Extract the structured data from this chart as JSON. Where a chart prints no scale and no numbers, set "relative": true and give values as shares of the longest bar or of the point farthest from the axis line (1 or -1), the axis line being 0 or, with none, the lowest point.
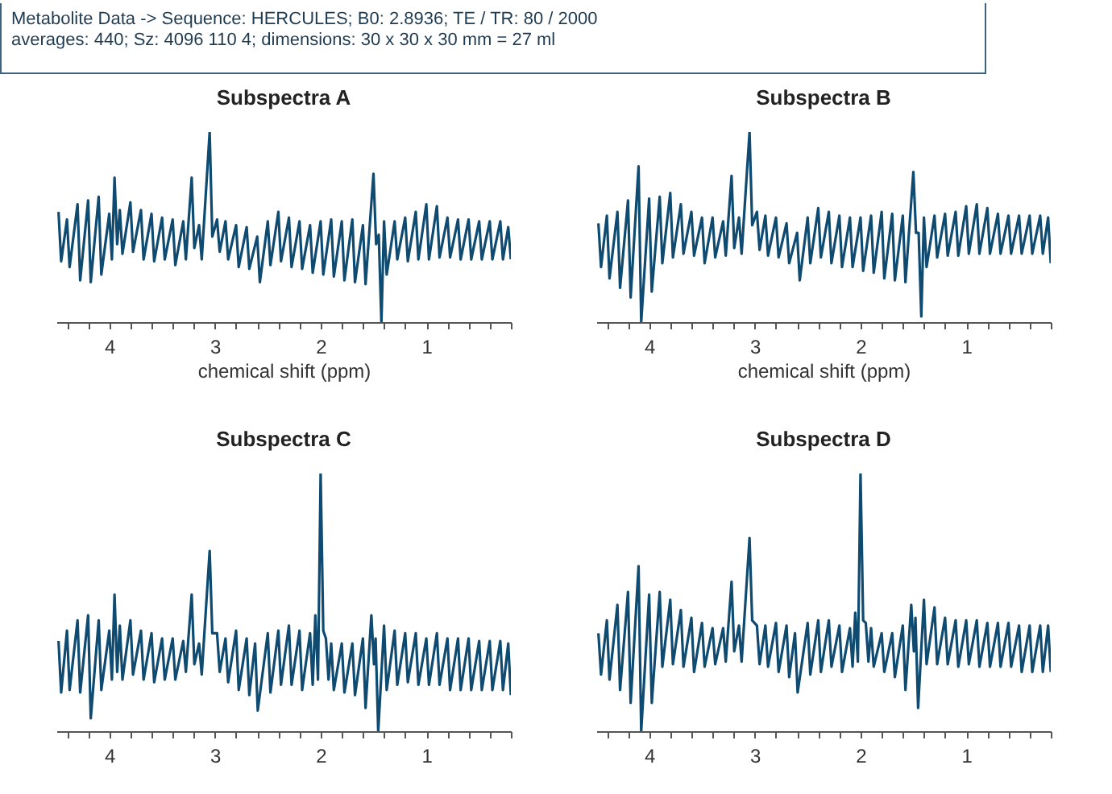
{
  "chart_data": [
    {
      "type": "other",
      "annotations": [
        "Metabolite Data -> Sequence: HERCULES; B0: 2.8936; TE / TR: 80 / 2000",
        "averages: 440; Sz: 4096   110     4; dimensions: 30 x 30 x 30 mm = 27 ml"
      ]
    },
    {
      "type": "line",
      "title": "Subspectra A",
      "xlabel": "chemical shift (ppm)",
      "relative": true,
      "xlim": [
        4.5,
        0.2
      ],
      "xticks": [
        {
          "value": 4.4,
          "label": null
        },
        {
          "value": 4.2,
          "label": null
        },
        4,
        {
          "value": 3.8,
          "label": null
        },
        {
          "value": 3.6,
          "label": null
        },
        {
          "value": 3.4,
          "label": null
        },
        {
          "value": 3.2,
          "label": null
        },
        3,
        {
          "value": 2.8,
          "label": null
        },
        {
          "value": 2.6,
          "label": null
        },
        {
          "value": 2.4,
          "label": null
        },
        {
          "value": 2.2,
          "label": null
        },
        2,
        {
          "value": 1.8,
          "label": null
        },
        {
          "value": 1.6,
          "label": null
        },
        {
          "value": 1.4,
          "label": null
        },
        {
          "value": 1.2,
          "label": null
        },
        1,
        {
          "value": 0.8,
          "label": null
        },
        {
          "value": 0.6,
          "label": null
        },
        {
          "value": 0.4,
          "label": null
        },
        {
          "value": 0.2,
          "label": null
        }
      ],
      "series": [
        {
          "color": "#0f4a70",
          "x": [
            4.48,
            4.455,
            4.4,
            4.375,
            4.3,
            4.275,
            4.2,
            4.175,
            4.1,
            4.075,
            4.0,
            3.975,
            3.95,
            3.925,
            3.9,
            3.875,
            3.8,
            3.775,
            3.7,
            3.675,
            3.6,
            3.575,
            3.5,
            3.475,
            3.4,
            3.375,
            3.3,
            3.275,
            3.22,
            3.195,
            3.15,
            3.125,
            3.05,
            3.025,
            2.98,
            2.955,
            2.9,
            2.875,
            2.8,
            2.775,
            2.7,
            2.675,
            2.6,
            2.575,
            2.5,
            2.475,
            2.4,
            2.375,
            2.3,
            2.275,
            2.2,
            2.175,
            2.1,
            2.075,
            2.0,
            1.975,
            1.9,
            1.875,
            1.8,
            1.775,
            1.7,
            1.675,
            1.6,
            1.575,
            1.5,
            1.475,
            1.45,
            1.425,
            1.4,
            1.375,
            1.3,
            1.275,
            1.2,
            1.175,
            1.1,
            1.075,
            1.0,
            0.975,
            0.9,
            0.875,
            0.8,
            0.775,
            0.7,
            0.675,
            0.6,
            0.575,
            0.5,
            0.475,
            0.4,
            0.375,
            0.3,
            0.275,
            0.225,
            0.2
          ],
          "values": [
            0.58,
            0.32,
            0.54,
            0.29,
            0.62,
            0.22,
            0.64,
            0.21,
            0.66,
            0.25,
            0.57,
            0.33,
            0.76,
            0.41,
            0.59,
            0.36,
            0.63,
            0.37,
            0.59,
            0.33,
            0.57,
            0.32,
            0.55,
            0.33,
            0.54,
            0.3,
            0.53,
            0.33,
            0.76,
            0.39,
            0.51,
            0.33,
            1,
            0.45,
            0.54,
            0.37,
            0.53,
            0.33,
            0.51,
            0.29,
            0.5,
            0.28,
            0.45,
            0.21,
            0.53,
            0.3,
            0.58,
            0.32,
            0.55,
            0.29,
            0.53,
            0.28,
            0.51,
            0.26,
            0.53,
            0.25,
            0.54,
            0.24,
            0.53,
            0.22,
            0.54,
            0.21,
            0.51,
            0.2,
            0.78,
            0.41,
            0.46,
            0,
            0.53,
            0.25,
            0.53,
            0.33,
            0.55,
            0.32,
            0.58,
            0.33,
            0.62,
            0.33,
            0.61,
            0.34,
            0.55,
            0.34,
            0.54,
            0.33,
            0.54,
            0.33,
            0.53,
            0.33,
            0.53,
            0.33,
            0.53,
            0.33,
            0.5,
            0.33
          ]
        }
      ]
    },
    {
      "type": "line",
      "title": "Subspectra B",
      "xlabel": "chemical shift (ppm)",
      "relative": true,
      "xlim": [
        4.5,
        0.2
      ],
      "xticks": [
        {
          "value": 4.4,
          "label": null
        },
        {
          "value": 4.2,
          "label": null
        },
        4,
        {
          "value": 3.8,
          "label": null
        },
        {
          "value": 3.6,
          "label": null
        },
        {
          "value": 3.4,
          "label": null
        },
        {
          "value": 3.2,
          "label": null
        },
        3,
        {
          "value": 2.8,
          "label": null
        },
        {
          "value": 2.6,
          "label": null
        },
        {
          "value": 2.4,
          "label": null
        },
        {
          "value": 2.2,
          "label": null
        },
        2,
        {
          "value": 1.8,
          "label": null
        },
        {
          "value": 1.6,
          "label": null
        },
        {
          "value": 1.4,
          "label": null
        },
        {
          "value": 1.2,
          "label": null
        },
        1,
        {
          "value": 0.8,
          "label": null
        },
        {
          "value": 0.6,
          "label": null
        },
        {
          "value": 0.4,
          "label": null
        },
        {
          "value": 0.2,
          "label": null
        }
      ],
      "series": [
        {
          "color": "#0f4a70",
          "x": [
            4.48,
            4.455,
            4.4,
            4.375,
            4.3,
            4.275,
            4.2,
            4.175,
            4.1,
            4.075,
            4.0,
            3.975,
            3.9,
            3.875,
            3.8,
            3.775,
            3.7,
            3.675,
            3.6,
            3.575,
            3.5,
            3.475,
            3.4,
            3.375,
            3.3,
            3.275,
            3.22,
            3.195,
            3.15,
            3.125,
            3.05,
            3.025,
            2.98,
            2.955,
            2.9,
            2.875,
            2.8,
            2.775,
            2.7,
            2.675,
            2.6,
            2.575,
            2.5,
            2.475,
            2.4,
            2.375,
            2.3,
            2.275,
            2.2,
            2.175,
            2.1,
            2.075,
            2.0,
            1.975,
            1.9,
            1.875,
            1.8,
            1.775,
            1.7,
            1.675,
            1.6,
            1.575,
            1.5,
            1.475,
            1.45,
            1.425,
            1.4,
            1.375,
            1.3,
            1.275,
            1.2,
            1.175,
            1.1,
            1.075,
            1.0,
            0.975,
            0.9,
            0.875,
            0.8,
            0.775,
            0.7,
            0.675,
            0.6,
            0.575,
            0.5,
            0.475,
            0.4,
            0.375,
            0.3,
            0.275,
            0.225,
            0.2
          ],
          "values": [
            0.52,
            0.29,
            0.56,
            0.23,
            0.58,
            0.18,
            0.64,
            0.13,
            0.82,
            0,
            0.65,
            0.16,
            0.66,
            0.31,
            0.68,
            0.34,
            0.62,
            0.36,
            0.58,
            0.35,
            0.55,
            0.31,
            0.55,
            0.34,
            0.53,
            0.35,
            0.77,
            0.39,
            0.55,
            0.36,
            1,
            0.51,
            0.58,
            0.38,
            0.56,
            0.35,
            0.55,
            0.34,
            0.52,
            0.31,
            0.47,
            0.22,
            0.55,
            0.31,
            0.6,
            0.34,
            0.58,
            0.31,
            0.56,
            0.29,
            0.55,
            0.29,
            0.55,
            0.27,
            0.56,
            0.26,
            0.58,
            0.23,
            0.57,
            0.22,
            0.56,
            0.21,
            0.79,
            0.47,
            0.47,
            0.03,
            0.55,
            0.29,
            0.56,
            0.34,
            0.57,
            0.35,
            0.58,
            0.35,
            0.61,
            0.36,
            0.62,
            0.36,
            0.6,
            0.36,
            0.57,
            0.36,
            0.56,
            0.36,
            0.56,
            0.36,
            0.56,
            0.36,
            0.56,
            0.36,
            0.55,
            0.31
          ]
        }
      ]
    },
    {
      "type": "line",
      "title": "Subspectra C",
      "relative": true,
      "xlim": [
        4.5,
        0.2
      ],
      "xticks": [
        {
          "value": 4.4,
          "label": null
        },
        {
          "value": 4.2,
          "label": null
        },
        4,
        {
          "value": 3.8,
          "label": null
        },
        {
          "value": 3.6,
          "label": null
        },
        {
          "value": 3.4,
          "label": null
        },
        {
          "value": 3.2,
          "label": null
        },
        3,
        {
          "value": 2.8,
          "label": null
        },
        {
          "value": 2.6,
          "label": null
        },
        {
          "value": 2.4,
          "label": null
        },
        {
          "value": 2.2,
          "label": null
        },
        2,
        {
          "value": 1.8,
          "label": null
        },
        {
          "value": 1.6,
          "label": null
        },
        {
          "value": 1.4,
          "label": null
        },
        {
          "value": 1.2,
          "label": null
        },
        1,
        {
          "value": 0.8,
          "label": null
        },
        {
          "value": 0.6,
          "label": null
        },
        {
          "value": 0.4,
          "label": null
        },
        {
          "value": 0.2,
          "label": null
        }
      ],
      "series": [
        {
          "color": "#0f4a70",
          "x": [
            4.48,
            4.455,
            4.4,
            4.375,
            4.3,
            4.275,
            4.2,
            4.175,
            4.1,
            4.075,
            4.0,
            3.975,
            3.95,
            3.925,
            3.9,
            3.875,
            3.8,
            3.775,
            3.7,
            3.675,
            3.6,
            3.575,
            3.5,
            3.475,
            3.4,
            3.375,
            3.3,
            3.275,
            3.22,
            3.195,
            3.15,
            3.125,
            3.05,
            3.025,
            2.98,
            2.955,
            2.9,
            2.875,
            2.8,
            2.775,
            2.7,
            2.675,
            2.62,
            2.595,
            2.5,
            2.475,
            2.4,
            2.375,
            2.3,
            2.275,
            2.2,
            2.175,
            2.1,
            2.075,
            2.05,
            2.025,
            2.0,
            1.975,
            1.95,
            1.925,
            1.9,
            1.875,
            1.8,
            1.775,
            1.7,
            1.675,
            1.6,
            1.575,
            1.52,
            1.495,
            1.48,
            1.455,
            1.4,
            1.375,
            1.3,
            1.275,
            1.2,
            1.175,
            1.1,
            1.075,
            1.0,
            0.975,
            0.9,
            0.875,
            0.8,
            0.775,
            0.7,
            0.675,
            0.6,
            0.575,
            0.5,
            0.475,
            0.4,
            0.375,
            0.3,
            0.275,
            0.225,
            0.2
          ],
          "values": [
            0.35,
            0.15,
            0.39,
            0.16,
            0.43,
            0.15,
            0.45,
            0.05,
            0.43,
            0.16,
            0.39,
            0.2,
            0.53,
            0.23,
            0.41,
            0.2,
            0.43,
            0.22,
            0.39,
            0.2,
            0.38,
            0.19,
            0.36,
            0.2,
            0.36,
            0.2,
            0.35,
            0.23,
            0.53,
            0.26,
            0.34,
            0.22,
            0.7,
            0.38,
            0.38,
            0.23,
            0.36,
            0.19,
            0.39,
            0.16,
            0.36,
            0.14,
            0.34,
            0.08,
            0.38,
            0.15,
            0.39,
            0.18,
            0.41,
            0.18,
            0.39,
            0.16,
            0.38,
            0.18,
            0.45,
            0.2,
            1,
            0.39,
            0.36,
            0.2,
            0.34,
            0.16,
            0.34,
            0.15,
            0.34,
            0.14,
            0.36,
            0.09,
            0.45,
            0.26,
            0.36,
            0,
            0.41,
            0.16,
            0.39,
            0.18,
            0.38,
            0.19,
            0.38,
            0.18,
            0.36,
            0.18,
            0.38,
            0.18,
            0.36,
            0.16,
            0.36,
            0.16,
            0.36,
            0.16,
            0.35,
            0.16,
            0.35,
            0.16,
            0.35,
            0.16,
            0.34,
            0.14
          ]
        }
      ]
    },
    {
      "type": "line",
      "title": "Subspectra D",
      "relative": true,
      "xlim": [
        4.5,
        0.2
      ],
      "xticks": [
        {
          "value": 4.4,
          "label": null
        },
        {
          "value": 4.2,
          "label": null
        },
        4,
        {
          "value": 3.8,
          "label": null
        },
        {
          "value": 3.6,
          "label": null
        },
        {
          "value": 3.4,
          "label": null
        },
        {
          "value": 3.2,
          "label": null
        },
        3,
        {
          "value": 2.8,
          "label": null
        },
        {
          "value": 2.6,
          "label": null
        },
        {
          "value": 2.4,
          "label": null
        },
        {
          "value": 2.2,
          "label": null
        },
        2,
        {
          "value": 1.8,
          "label": null
        },
        {
          "value": 1.6,
          "label": null
        },
        {
          "value": 1.4,
          "label": null
        },
        {
          "value": 1.2,
          "label": null
        },
        1,
        {
          "value": 0.8,
          "label": null
        },
        {
          "value": 0.6,
          "label": null
        },
        {
          "value": 0.4,
          "label": null
        },
        {
          "value": 0.2,
          "label": null
        }
      ],
      "series": [
        {
          "color": "#0f4a70",
          "x": [
            4.48,
            4.455,
            4.4,
            4.375,
            4.3,
            4.275,
            4.2,
            4.175,
            4.1,
            4.075,
            4.0,
            3.975,
            3.9,
            3.875,
            3.8,
            3.775,
            3.7,
            3.675,
            3.6,
            3.575,
            3.5,
            3.475,
            3.4,
            3.375,
            3.3,
            3.275,
            3.22,
            3.195,
            3.15,
            3.125,
            3.05,
            3.025,
            2.98,
            2.955,
            2.9,
            2.875,
            2.8,
            2.775,
            2.7,
            2.675,
            2.62,
            2.595,
            2.5,
            2.475,
            2.4,
            2.375,
            2.3,
            2.275,
            2.2,
            2.175,
            2.1,
            2.075,
            2.05,
            2.025,
            2.0,
            1.975,
            1.95,
            1.925,
            1.9,
            1.875,
            1.8,
            1.775,
            1.7,
            1.675,
            1.6,
            1.575,
            1.52,
            1.495,
            1.48,
            1.455,
            1.4,
            1.375,
            1.3,
            1.275,
            1.2,
            1.175,
            1.1,
            1.075,
            1.0,
            0.975,
            0.9,
            0.875,
            0.8,
            0.775,
            0.7,
            0.675,
            0.6,
            0.575,
            0.5,
            0.475,
            0.4,
            0.375,
            0.3,
            0.275,
            0.225,
            0.2
          ],
          "values": [
            0.38,
            0.22,
            0.43,
            0.2,
            0.49,
            0.16,
            0.54,
            0.11,
            0.64,
            0,
            0.53,
            0.11,
            0.54,
            0.25,
            0.51,
            0.26,
            0.47,
            0.25,
            0.44,
            0.23,
            0.42,
            0.25,
            0.4,
            0.26,
            0.4,
            0.27,
            0.58,
            0.31,
            0.41,
            0.27,
            0.75,
            0.43,
            0.41,
            0.26,
            0.41,
            0.25,
            0.42,
            0.23,
            0.41,
            0.21,
            0.38,
            0.15,
            0.42,
            0.22,
            0.43,
            0.23,
            0.43,
            0.25,
            0.41,
            0.23,
            0.4,
            0.25,
            0.46,
            0.27,
            1,
            0.43,
            0.42,
            0.27,
            0.4,
            0.25,
            0.38,
            0.23,
            0.38,
            0.21,
            0.41,
            0.16,
            0.49,
            0.31,
            0.44,
            0.09,
            0.51,
            0.26,
            0.48,
            0.26,
            0.44,
            0.26,
            0.43,
            0.25,
            0.43,
            0.26,
            0.43,
            0.25,
            0.42,
            0.25,
            0.42,
            0.25,
            0.42,
            0.25,
            0.41,
            0.23,
            0.41,
            0.23,
            0.41,
            0.23,
            0.41,
            0.23
          ]
        }
      ]
    }
  ]
}
